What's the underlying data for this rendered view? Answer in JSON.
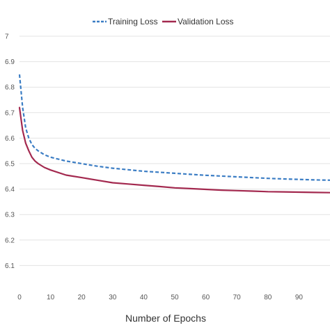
{
  "chart_data": {
    "type": "line",
    "title": "",
    "xlabel": "Number of Epochs",
    "ylabel": "",
    "xlim": [
      0,
      100
    ],
    "ylim": [
      6.0,
      7.0
    ],
    "x_ticks": [
      0,
      10,
      20,
      30,
      40,
      50,
      60,
      70,
      80,
      90
    ],
    "y_ticks": [
      6.1,
      6.2,
      6.3,
      6.4,
      6.5,
      6.6,
      6.7,
      6.8,
      6.9,
      7
    ],
    "grid": "horizontal",
    "legend": "top-center",
    "series": [
      {
        "name": "Training Loss",
        "color": "#3b7dc4",
        "style": "dashed",
        "points": [
          [
            0,
            6.85
          ],
          [
            1,
            6.72
          ],
          [
            2,
            6.64
          ],
          [
            3,
            6.6
          ],
          [
            4,
            6.575
          ],
          [
            5,
            6.56
          ],
          [
            6,
            6.55
          ],
          [
            8,
            6.535
          ],
          [
            10,
            6.525
          ],
          [
            15,
            6.51
          ],
          [
            20,
            6.5
          ],
          [
            25,
            6.49
          ],
          [
            30,
            6.482
          ],
          [
            35,
            6.476
          ],
          [
            40,
            6.47
          ],
          [
            45,
            6.466
          ],
          [
            50,
            6.462
          ],
          [
            55,
            6.458
          ],
          [
            60,
            6.454
          ],
          [
            65,
            6.451
          ],
          [
            70,
            6.448
          ],
          [
            75,
            6.445
          ],
          [
            80,
            6.442
          ],
          [
            85,
            6.44
          ],
          [
            90,
            6.438
          ],
          [
            95,
            6.436
          ],
          [
            100,
            6.435
          ]
        ]
      },
      {
        "name": "Validation Loss",
        "color": "#a3294f",
        "style": "solid",
        "points": [
          [
            0,
            6.72
          ],
          [
            1,
            6.63
          ],
          [
            2,
            6.58
          ],
          [
            3,
            6.55
          ],
          [
            4,
            6.525
          ],
          [
            5,
            6.51
          ],
          [
            6,
            6.5
          ],
          [
            8,
            6.485
          ],
          [
            10,
            6.475
          ],
          [
            15,
            6.455
          ],
          [
            20,
            6.445
          ],
          [
            25,
            6.435
          ],
          [
            30,
            6.425
          ],
          [
            35,
            6.42
          ],
          [
            40,
            6.415
          ],
          [
            45,
            6.41
          ],
          [
            50,
            6.405
          ],
          [
            55,
            6.402
          ],
          [
            60,
            6.399
          ],
          [
            65,
            6.396
          ],
          [
            70,
            6.394
          ],
          [
            75,
            6.392
          ],
          [
            80,
            6.39
          ],
          [
            85,
            6.389
          ],
          [
            90,
            6.388
          ],
          [
            95,
            6.387
          ],
          [
            100,
            6.386
          ]
        ]
      }
    ]
  }
}
